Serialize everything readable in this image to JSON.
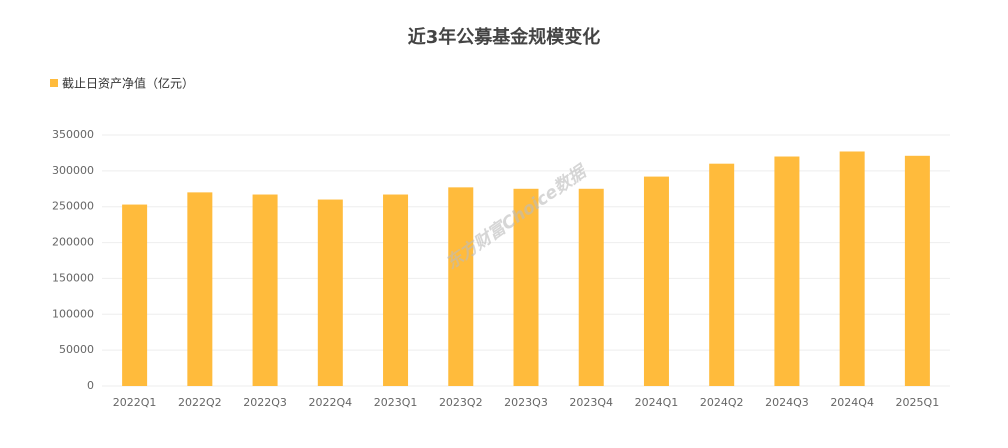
{
  "chart_data": {
    "type": "bar",
    "title": "近3年公募基金规模变化",
    "watermark": "东方财富Choice数据",
    "categories": [
      "2022Q1",
      "2022Q2",
      "2022Q3",
      "2022Q4",
      "2023Q1",
      "2023Q2",
      "2023Q3",
      "2023Q4",
      "2024Q1",
      "2024Q2",
      "2024Q3",
      "2024Q4",
      "2025Q1"
    ],
    "series": [
      {
        "name": "截止日资产净值（亿元）",
        "color": "#ffbb3c",
        "values": [
          253000,
          270000,
          267000,
          260000,
          267000,
          277000,
          275000,
          275000,
          292000,
          310000,
          320000,
          327000,
          321000
        ]
      }
    ],
    "ylim": [
      0,
      350000
    ],
    "yticks": [
      0,
      50000,
      100000,
      150000,
      200000,
      250000,
      300000,
      350000
    ],
    "grid": true,
    "legend": "top-left"
  }
}
